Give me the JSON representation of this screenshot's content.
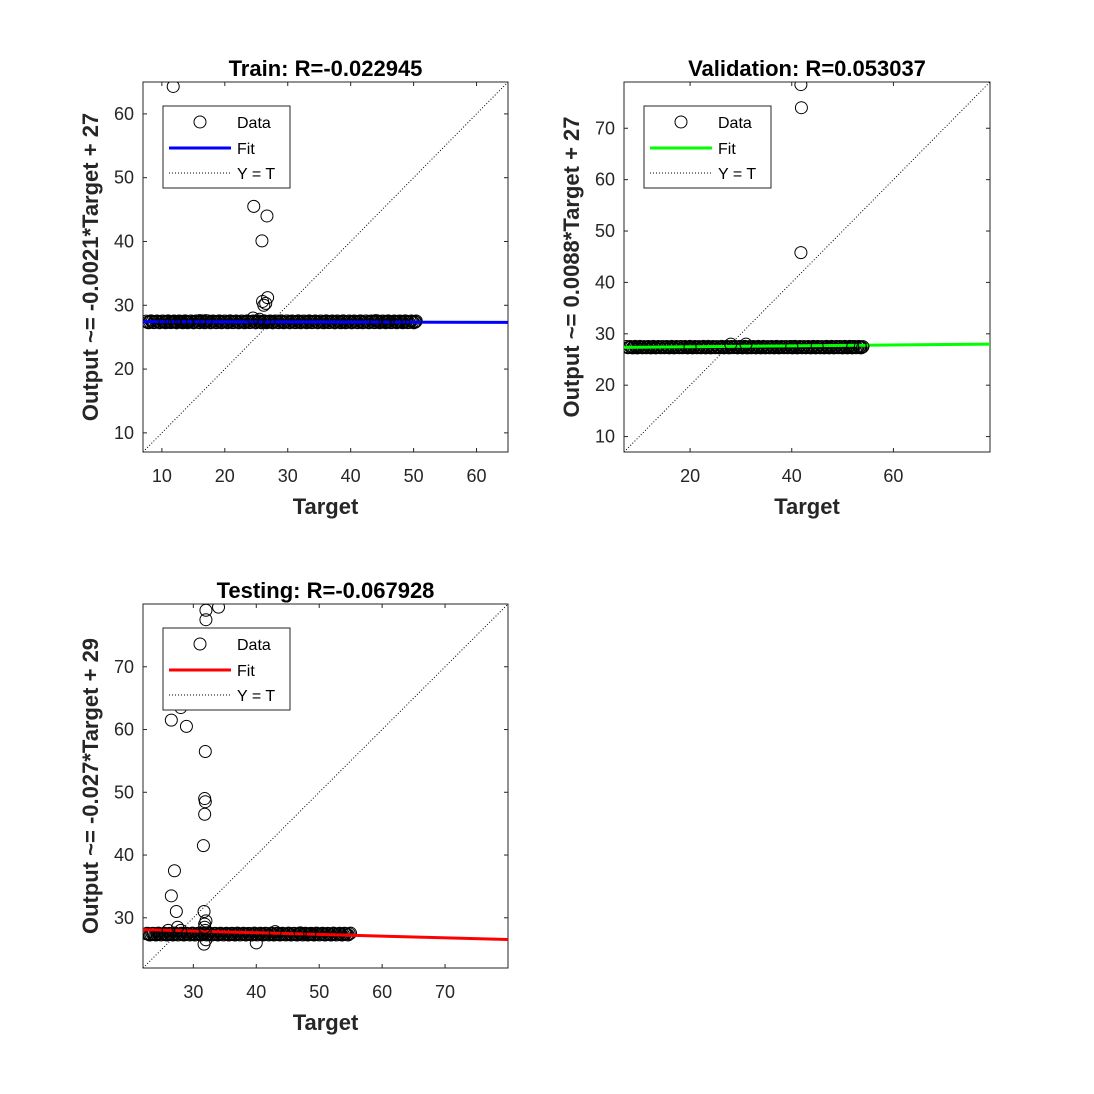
{
  "chart_data": [
    {
      "type": "scatter",
      "title": "Train: R=-0.022945",
      "xlabel": "Target",
      "ylabel": "Output ~= -0.0021*Target + 27",
      "xlim": [
        7,
        65
      ],
      "ylim": [
        7,
        65
      ],
      "xticks": [
        10,
        20,
        30,
        40,
        50,
        60
      ],
      "yticks": [
        10,
        20,
        30,
        40,
        50,
        60
      ],
      "fit": {
        "slope": -0.0021,
        "intercept": 27.45,
        "color": "#0000ff"
      },
      "legend": {
        "position": "top-left",
        "entries": [
          "Data",
          "Fit",
          "Y = T"
        ]
      },
      "line_points": [
        [
          7.5,
          27.4
        ],
        [
          8,
          27.4
        ],
        [
          50.5,
          27.4
        ]
      ],
      "series": [
        {
          "x": [
            11.8,
            24.6,
            25.9,
            26.7,
            26.0,
            26.2,
            26.5,
            26.8,
            24.5,
            25.5,
            27.0,
            26.3,
            50.3,
            47.8,
            47.2,
            16.0,
            17.0,
            44.0,
            46.0,
            45.5,
            10.5,
            11.5,
            12.0,
            13.0,
            14.0
          ],
          "y": [
            64.3,
            45.5,
            40.1,
            44.0,
            30.6,
            30.0,
            30.3,
            31.2,
            28.0,
            27.8,
            27.4,
            27.5,
            27.4,
            27.4,
            27.4,
            27.6,
            27.6,
            27.6,
            27.4,
            27.4,
            27.4,
            27.4,
            27.4,
            27.4,
            27.4
          ]
        }
      ]
    },
    {
      "type": "scatter",
      "title": "Validation: R=0.053037",
      "xlabel": "Target",
      "ylabel": "Output ~= 0.0088*Target + 27",
      "xlim": [
        7,
        79
      ],
      "ylim": [
        7,
        79
      ],
      "xticks": [
        20,
        40,
        60
      ],
      "yticks": [
        10,
        20,
        30,
        40,
        50,
        60,
        70
      ],
      "fit": {
        "slope": 0.0088,
        "intercept": 27.3,
        "color": "#00ff00"
      },
      "legend": {
        "position": "top-left",
        "entries": [
          "Data",
          "Fit",
          "Y = T"
        ]
      },
      "line_points": [
        [
          7.5,
          27.4
        ],
        [
          8,
          27.4
        ],
        [
          54,
          27.5
        ]
      ],
      "series": [
        {
          "x": [
            41.8,
            41.9,
            41.8,
            28.0,
            31.0,
            20.0,
            52.0,
            53.5,
            54.0,
            45.0,
            40.0
          ],
          "y": [
            78.5,
            74.0,
            45.8,
            28.0,
            28.0,
            27.4,
            27.5,
            27.5,
            27.5,
            27.5,
            27.5
          ]
        }
      ]
    },
    {
      "type": "scatter",
      "title": "Testing: R=-0.067928",
      "xlabel": "Target",
      "ylabel": "Output ~= -0.027*Target + 29",
      "xlim": [
        22,
        80
      ],
      "ylim": [
        22,
        80
      ],
      "xticks": [
        30,
        40,
        50,
        60,
        70
      ],
      "yticks": [
        30,
        40,
        50,
        60,
        70
      ],
      "fit": {
        "slope": -0.027,
        "intercept": 28.7,
        "color": "#ff0000"
      },
      "legend": {
        "position": "top-left",
        "entries": [
          "Data",
          "Fit",
          "Y = T"
        ]
      },
      "line_points": [
        [
          22.5,
          27.4
        ],
        [
          23,
          27.4
        ],
        [
          49,
          27.4
        ],
        [
          53,
          27.4
        ],
        [
          55,
          27.4
        ]
      ],
      "series": [
        {
          "x": [
            32.0,
            34.0,
            32.0,
            31.8,
            26.5,
            28.0,
            28.9,
            31.9,
            31.8,
            31.9,
            31.8,
            31.6,
            27.0,
            26.5,
            27.3,
            31.7,
            32.0,
            31.8,
            31.8,
            31.9,
            32.0,
            27.5,
            28.0,
            26.0,
            31.7,
            40.0,
            43.0,
            47.0,
            48.5
          ],
          "y": [
            79.0,
            79.5,
            77.5,
            74.0,
            61.5,
            63.5,
            60.5,
            56.5,
            49.0,
            48.5,
            46.5,
            41.5,
            37.5,
            33.5,
            31.0,
            31.0,
            29.5,
            29.0,
            28.5,
            28.0,
            26.5,
            28.5,
            28.0,
            28.0,
            25.8,
            26.0,
            27.8,
            27.6,
            27.4
          ]
        }
      ]
    }
  ]
}
